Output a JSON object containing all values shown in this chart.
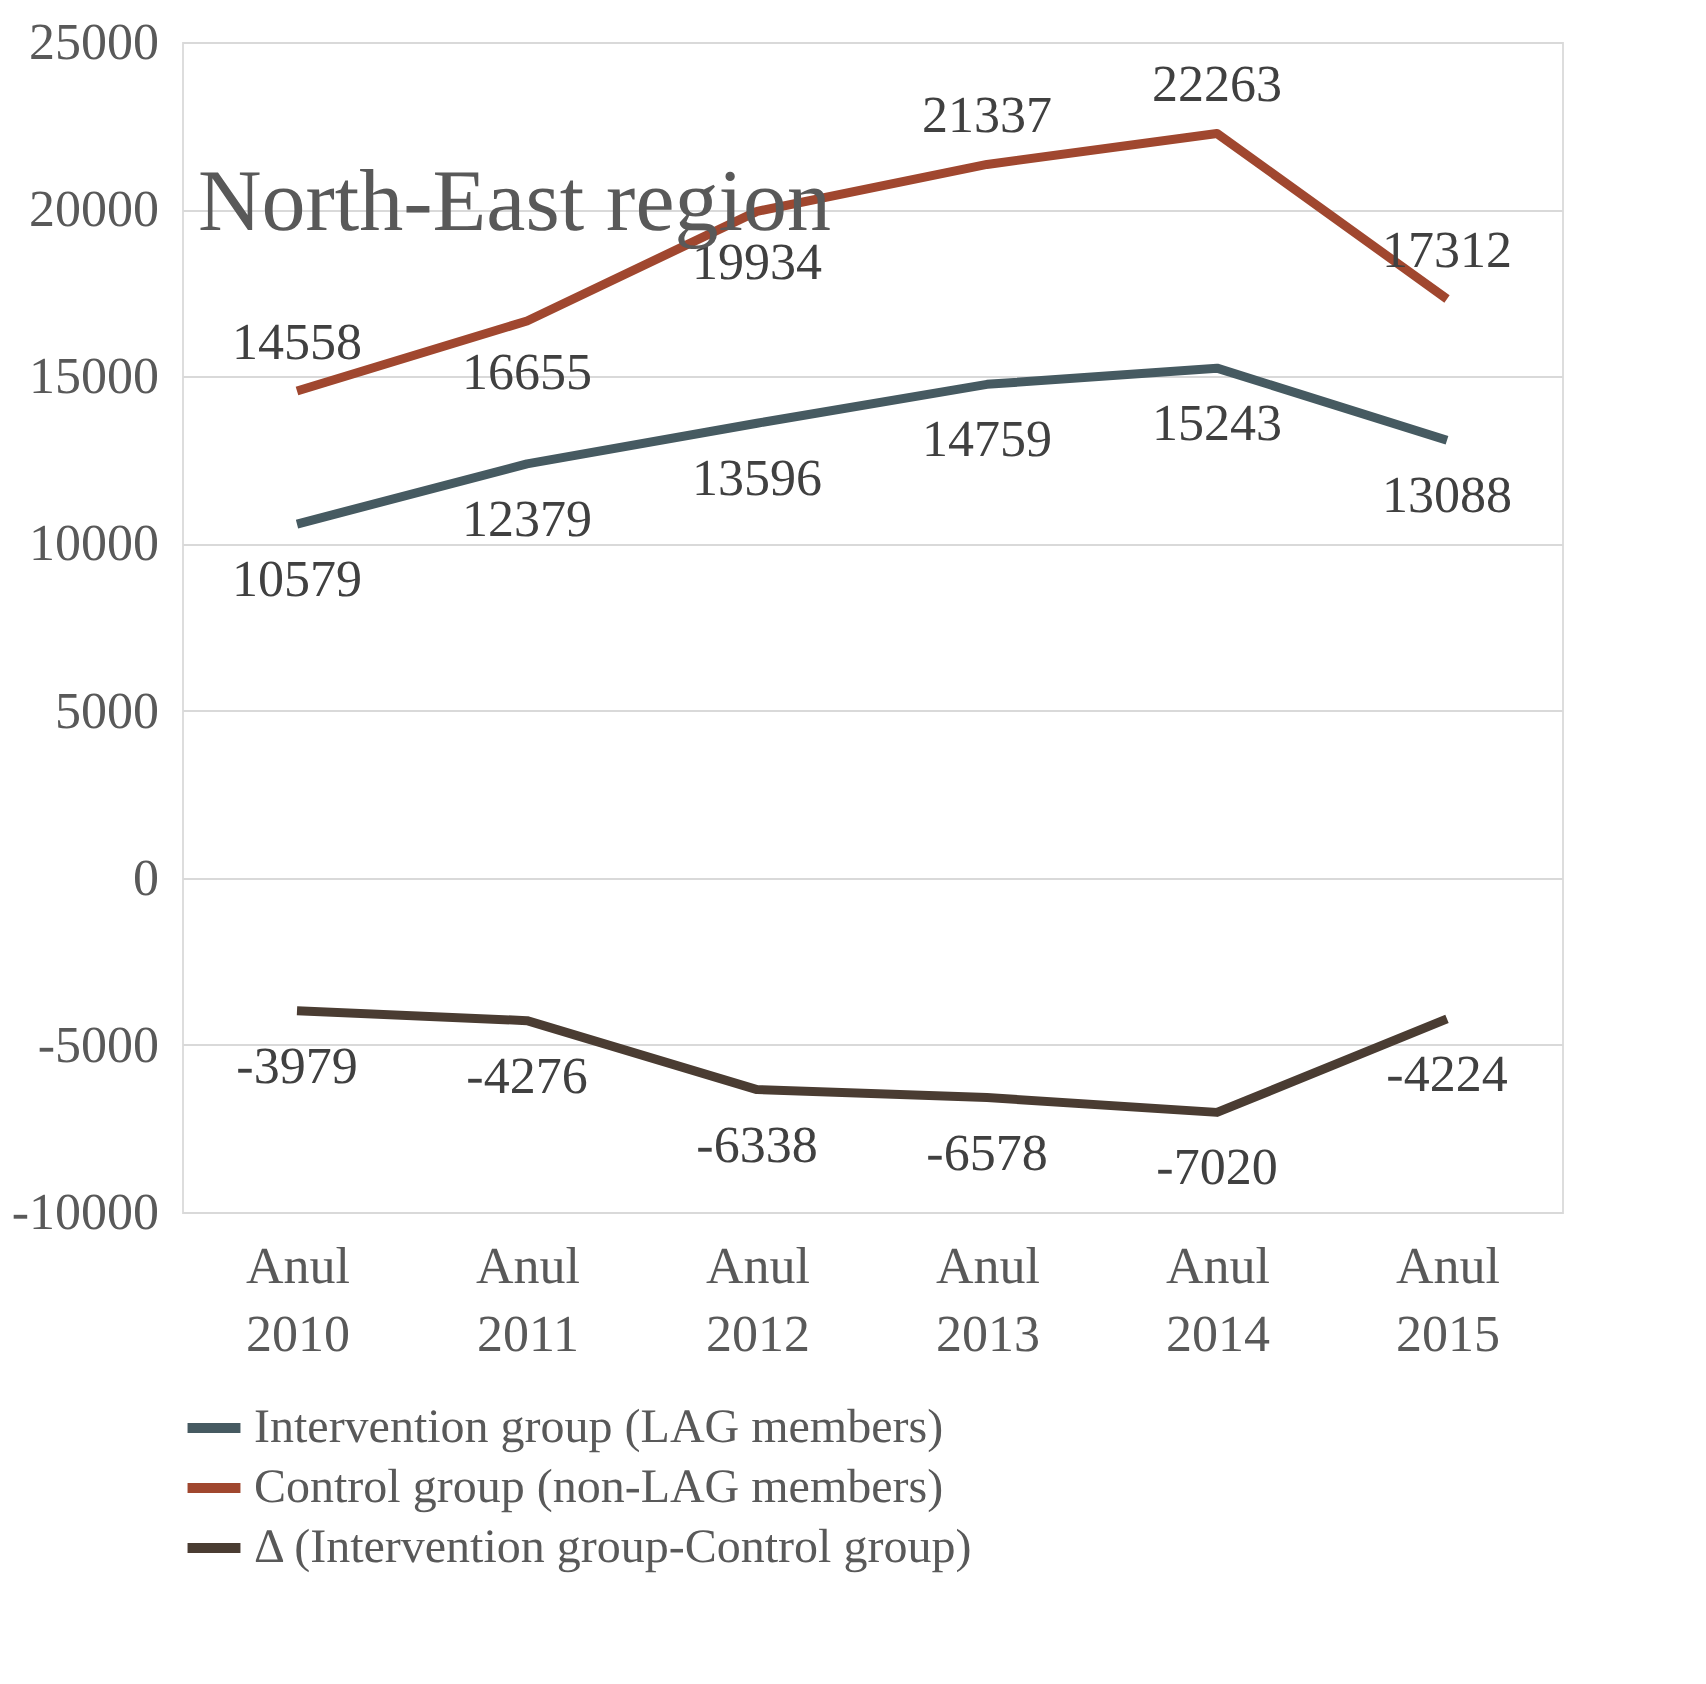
{
  "chart_data": {
    "type": "line",
    "title": "North-East region",
    "categories": [
      "Anul 2010",
      "Anul 2011",
      "Anul 2012",
      "Anul 2013",
      "Anul 2014",
      "Anul 2015"
    ],
    "series": [
      {
        "name": "Intervention group (LAG members)",
        "color": "#465a61",
        "values": [
          10579,
          12379,
          13596,
          14759,
          15243,
          13088
        ]
      },
      {
        "name": "Control group (non-LAG members)",
        "color": "#a0472f",
        "values": [
          14558,
          16655,
          19934,
          21337,
          22263,
          17312
        ]
      },
      {
        "name": "Δ (Intervention group-Control group)",
        "color": "#4a3c32",
        "values": [
          -3979,
          -4276,
          -6338,
          -6578,
          -7020,
          -4224
        ]
      }
    ],
    "ylim": [
      -10000,
      25000
    ],
    "yticks": [
      -10000,
      -5000,
      0,
      5000,
      10000,
      15000,
      20000,
      25000
    ],
    "grid": "y",
    "legend": "bottom",
    "data_labels": true,
    "marker": "none",
    "line_style": "solid"
  }
}
